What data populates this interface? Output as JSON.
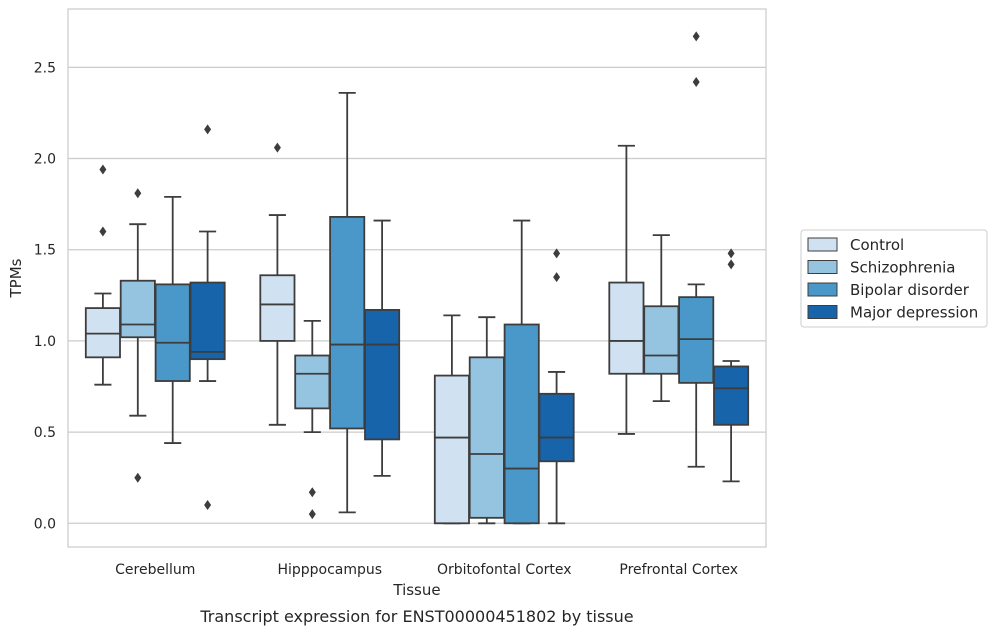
{
  "chart_data": {
    "type": "boxplot",
    "caption": "Transcript expression for ENST00000451802 by tissue",
    "xlabel": "Tissue",
    "ylabel": "TPMs",
    "ylim": [
      -0.13,
      2.82
    ],
    "yticks": [
      0.0,
      0.5,
      1.0,
      1.5,
      2.0,
      2.5
    ],
    "ytick_labels": [
      "0.0",
      "0.5",
      "1.0",
      "1.5",
      "2.0",
      "2.5"
    ],
    "grid": "horizontal",
    "legend_position": "right",
    "categories": [
      "Cerebellum",
      "Hipppocampus",
      "Orbitofontal Cortex",
      "Prefrontal Cortex"
    ],
    "series": [
      {
        "name": "Control",
        "color": "#d0e1f2",
        "boxes": [
          {
            "whisker_low": 0.76,
            "q1": 0.91,
            "median": 1.04,
            "q3": 1.18,
            "whisker_high": 1.26,
            "outliers": [
              1.94,
              1.6
            ]
          },
          {
            "whisker_low": 0.54,
            "q1": 1.0,
            "median": 1.2,
            "q3": 1.36,
            "whisker_high": 1.69,
            "outliers": [
              2.06
            ]
          },
          {
            "whisker_low": 0.0,
            "q1": 0.0,
            "median": 0.47,
            "q3": 0.81,
            "whisker_high": 1.14,
            "outliers": []
          },
          {
            "whisker_low": 0.49,
            "q1": 0.82,
            "median": 1.0,
            "q3": 1.32,
            "whisker_high": 2.07,
            "outliers": []
          }
        ]
      },
      {
        "name": "Schizophrenia",
        "color": "#94c4df",
        "boxes": [
          {
            "whisker_low": 0.59,
            "q1": 1.02,
            "median": 1.09,
            "q3": 1.33,
            "whisker_high": 1.64,
            "outliers": [
              1.81,
              0.25
            ]
          },
          {
            "whisker_low": 0.5,
            "q1": 0.63,
            "median": 0.82,
            "q3": 0.92,
            "whisker_high": 1.11,
            "outliers": [
              0.17,
              0.05
            ]
          },
          {
            "whisker_low": 0.0,
            "q1": 0.03,
            "median": 0.38,
            "q3": 0.91,
            "whisker_high": 1.13,
            "outliers": []
          },
          {
            "whisker_low": 0.67,
            "q1": 0.82,
            "median": 0.92,
            "q3": 1.19,
            "whisker_high": 1.58,
            "outliers": []
          }
        ]
      },
      {
        "name": "Bipolar disorder",
        "color": "#4a98c9",
        "boxes": [
          {
            "whisker_low": 0.44,
            "q1": 0.78,
            "median": 0.99,
            "q3": 1.31,
            "whisker_high": 1.79,
            "outliers": []
          },
          {
            "whisker_low": 0.06,
            "q1": 0.52,
            "median": 0.98,
            "q3": 1.68,
            "whisker_high": 2.36,
            "outliers": []
          },
          {
            "whisker_low": 0.0,
            "q1": 0.0,
            "median": 0.3,
            "q3": 1.09,
            "whisker_high": 1.66,
            "outliers": []
          },
          {
            "whisker_low": 0.31,
            "q1": 0.77,
            "median": 1.01,
            "q3": 1.24,
            "whisker_high": 1.31,
            "outliers": [
              2.67,
              2.42
            ]
          }
        ]
      },
      {
        "name": "Major depression",
        "color": "#1764ab",
        "boxes": [
          {
            "whisker_low": 0.78,
            "q1": 0.9,
            "median": 0.94,
            "q3": 1.32,
            "whisker_high": 1.6,
            "outliers": [
              2.16,
              0.1
            ]
          },
          {
            "whisker_low": 0.26,
            "q1": 0.46,
            "median": 0.98,
            "q3": 1.17,
            "whisker_high": 1.66,
            "outliers": []
          },
          {
            "whisker_low": 0.0,
            "q1": 0.34,
            "median": 0.47,
            "q3": 0.71,
            "whisker_high": 0.83,
            "outliers": [
              1.48,
              1.35
            ]
          },
          {
            "whisker_low": 0.23,
            "q1": 0.54,
            "median": 0.74,
            "q3": 0.86,
            "whisker_high": 0.89,
            "outliers": [
              1.48,
              1.42
            ]
          }
        ]
      }
    ]
  }
}
